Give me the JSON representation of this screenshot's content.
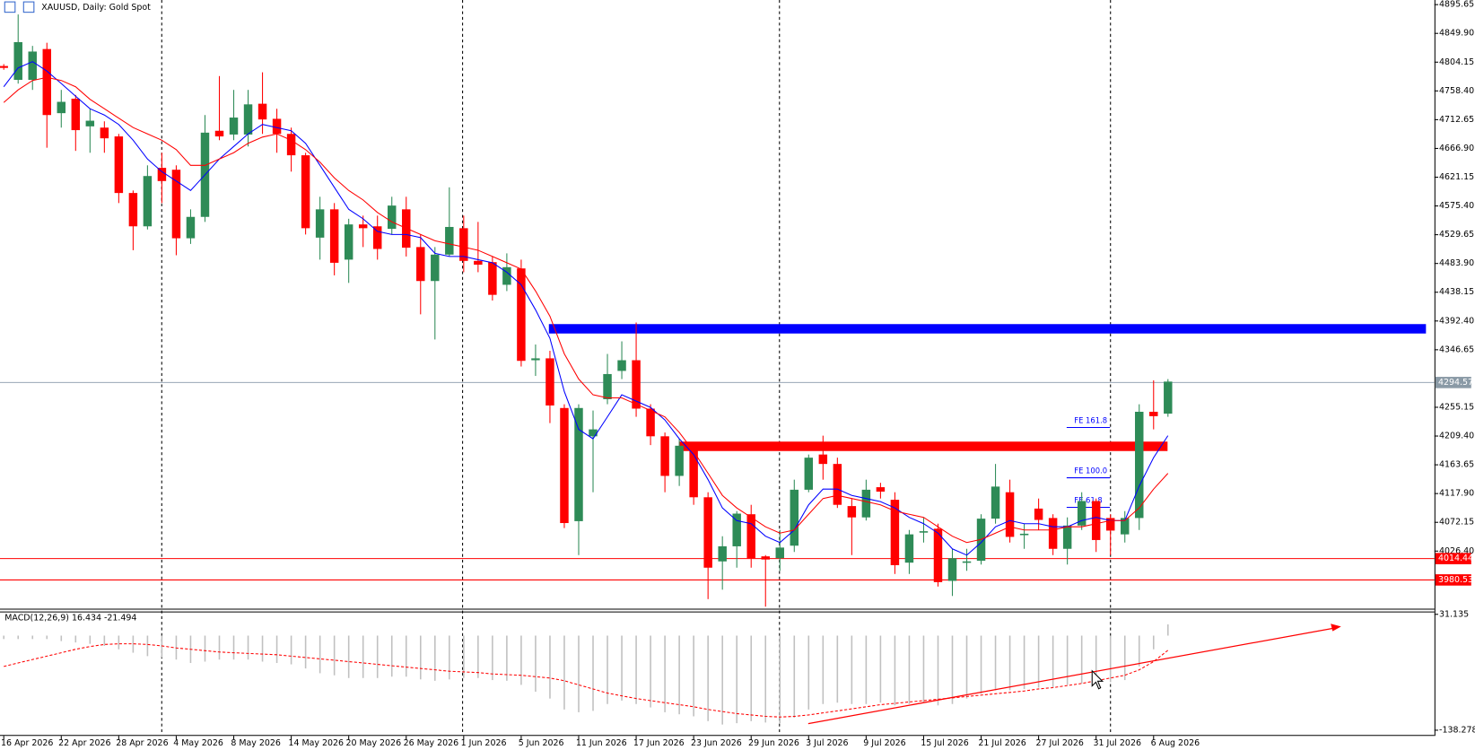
{
  "chart_data": [
    {
      "type": "candlestick",
      "title": "XAUUSD, Daily:  Gold Spot",
      "categories": [
        "16 Apr 2026",
        null,
        null,
        null,
        "22 Apr 2026",
        null,
        null,
        null,
        "28 Apr 2026",
        null,
        null,
        null,
        "4 May 2026",
        null,
        null,
        null,
        "8 May 2026",
        null,
        null,
        null,
        "14 May 2026",
        null,
        null,
        null,
        "20 May 2026",
        null,
        null,
        null,
        "26 May 2026",
        null,
        null,
        null,
        "1 Jun 2026",
        null,
        null,
        null,
        "5 Jun 2026",
        null,
        null,
        null,
        "11 Jun 2026",
        null,
        null,
        null,
        "17 Jun 2026",
        null,
        null,
        null,
        "23 Jun 2026",
        null,
        null,
        null,
        "29 Jun 2026",
        null,
        null,
        null,
        "3 Jul 2026",
        null,
        null,
        null,
        "9 Jul 2026",
        null,
        null,
        null,
        "15 Jul 2026",
        null,
        null,
        null,
        "21 Jul 2026",
        null,
        null,
        null,
        "27 Jul 2026",
        null,
        null,
        null,
        "31 Jul 2026",
        null,
        null,
        null,
        "6 Aug 2026",
        null
      ],
      "open": [
        4798,
        4776,
        4776,
        4825,
        4723,
        4746,
        4702,
        4700,
        4686,
        4596,
        4543,
        4636,
        4633,
        4524,
        4558,
        4695,
        4689,
        4689,
        4738,
        4714,
        4690,
        4656,
        4525,
        4570,
        4490,
        4546,
        4543,
        4539,
        4570,
        4510,
        4456,
        4498,
        4540,
        4488,
        4486,
        4450,
        4476,
        4330,
        4333,
        4254,
        4074,
        4209,
        4268,
        4313,
        4330,
        4253,
        4209,
        4146,
        4192,
        4112,
        4010,
        4034,
        4085,
        4018,
        4015,
        4035,
        4124,
        4180,
        4165,
        4098,
        4080,
        4128,
        4108,
        4008,
        4056,
        4062,
        3979,
        4008,
        4011,
        4078,
        4120,
        4052,
        4094,
        4079,
        4030,
        4067,
        4106,
        4079,
        4053,
        4079,
        4248,
        4245
      ],
      "high": [
        4801,
        4880,
        4830,
        4835,
        4760,
        4752,
        4730,
        4710,
        4690,
        4600,
        4640,
        4660,
        4640,
        4570,
        4720,
        4782,
        4760,
        4760,
        4788,
        4730,
        4700,
        4660,
        4590,
        4580,
        4555,
        4560,
        4560,
        4590,
        4590,
        4530,
        4510,
        4605,
        4560,
        4550,
        4495,
        4500,
        4490,
        4355,
        4345,
        4260,
        4260,
        4250,
        4340,
        4360,
        4390,
        4260,
        4215,
        4205,
        4198,
        4120,
        4050,
        4090,
        4100,
        4020,
        4060,
        4140,
        4180,
        4210,
        4175,
        4110,
        4140,
        4135,
        4120,
        4060,
        4080,
        4070,
        4030,
        4030,
        4085,
        4165,
        4140,
        4070,
        4110,
        4085,
        4080,
        4120,
        4110,
        4085,
        4090,
        4260,
        4298,
        4300
      ],
      "low": [
        4792,
        4770,
        4760,
        4668,
        4700,
        4663,
        4660,
        4660,
        4580,
        4505,
        4538,
        4580,
        4497,
        4515,
        4550,
        4680,
        4680,
        4670,
        4690,
        4660,
        4630,
        4530,
        4490,
        4465,
        4453,
        4510,
        4490,
        4530,
        4495,
        4403,
        4363,
        4495,
        4470,
        4470,
        4425,
        4440,
        4320,
        4305,
        4230,
        4063,
        4020,
        4120,
        4260,
        4300,
        4240,
        4195,
        4120,
        4130,
        4100,
        3950,
        3965,
        4000,
        4000,
        3938,
        3995,
        4025,
        4120,
        4140,
        4095,
        4020,
        4075,
        4110,
        3990,
        3990,
        4040,
        3970,
        3955,
        3995,
        4005,
        4070,
        4040,
        4030,
        4060,
        4020,
        4005,
        4060,
        4025,
        4020,
        4040,
        4060,
        4220,
        4240
      ],
      "close": [
        4795,
        4836,
        4821,
        4720,
        4741,
        4696,
        4711,
        4683,
        4596,
        4543,
        4623,
        4615,
        4524,
        4558,
        4692,
        4686,
        4716,
        4737,
        4713,
        4690,
        4656,
        4540,
        4570,
        4485,
        4546,
        4540,
        4507,
        4576,
        4509,
        4456,
        4498,
        4542,
        4488,
        4482,
        4434,
        4478,
        4329,
        4333,
        4258,
        4071,
        4254,
        4220,
        4308,
        4330,
        4253,
        4209,
        4146,
        4194,
        4112,
        4000,
        4034,
        4086,
        4015,
        4013,
        4032,
        4124,
        4175,
        4165,
        4100,
        4080,
        4124,
        4121,
        4004,
        4053,
        4058,
        3977,
        4015,
        4010,
        4078,
        4129,
        4049,
        4054,
        4076,
        4030,
        4067,
        4106,
        4044,
        4059,
        4079,
        4248,
        4241,
        4296
      ],
      "up_color": "#2e8b57",
      "down_color": "#ff0000",
      "series": [
        {
          "color": "#0000ff",
          "values": [
            4765,
            4795,
            4805,
            4790,
            4770,
            4750,
            4730,
            4720,
            4705,
            4680,
            4650,
            4630,
            4615,
            4600,
            4625,
            4650,
            4670,
            4690,
            4705,
            4700,
            4695,
            4675,
            4640,
            4605,
            4570,
            4555,
            4535,
            4530,
            4530,
            4525,
            4500,
            4495,
            4495,
            4490,
            4485,
            4470,
            4450,
            4410,
            4365,
            4280,
            4220,
            4205,
            4240,
            4275,
            4265,
            4255,
            4235,
            4205,
            4180,
            4140,
            4095,
            4075,
            4070,
            4050,
            4040,
            4060,
            4100,
            4125,
            4125,
            4115,
            4110,
            4105,
            4095,
            4080,
            4070,
            4055,
            4030,
            4020,
            4040,
            4065,
            4075,
            4070,
            4070,
            4065,
            4065,
            4075,
            4080,
            4075,
            4075,
            4130,
            4175,
            4210
          ]
        },
        {
          "color": "#ff0000",
          "values": [
            4740,
            4760,
            4775,
            4780,
            4775,
            4765,
            4745,
            4730,
            4715,
            4700,
            4690,
            4680,
            4665,
            4640,
            4640,
            4650,
            4660,
            4675,
            4685,
            4690,
            4680,
            4665,
            4645,
            4620,
            4600,
            4585,
            4565,
            4550,
            4540,
            4530,
            4520,
            4515,
            4510,
            4505,
            4495,
            4485,
            4475,
            4440,
            4400,
            4340,
            4300,
            4275,
            4270,
            4270,
            4260,
            4250,
            4240,
            4215,
            4185,
            4150,
            4115,
            4095,
            4080,
            4065,
            4055,
            4060,
            4085,
            4110,
            4115,
            4110,
            4105,
            4100,
            4090,
            4085,
            4080,
            4065,
            4050,
            4040,
            4045,
            4055,
            4065,
            4060,
            4060,
            4060,
            4065,
            4065,
            4070,
            4075,
            4075,
            4095,
            4125,
            4150
          ]
        }
      ],
      "ylim": [
        3936.3,
        4903
      ],
      "yticks": [
        4895.65,
        {
          "value": 4849.9,
          "label": "4849.90"
        },
        4804.15,
        {
          "value": 4758.4,
          "label": "4758.40"
        },
        4712.65,
        {
          "value": 4666.9,
          "label": "4666.90"
        },
        4621.15,
        {
          "value": 4575.4,
          "label": "4575.40"
        },
        4529.65,
        {
          "value": 4483.9,
          "label": "4483.90"
        },
        4438.15,
        {
          "value": 4392.4,
          "label": "4392.40"
        },
        4346.65,
        4255.15,
        {
          "value": 4209.4,
          "label": "4209.40"
        },
        4163.65,
        {
          "value": 4117.9,
          "label": "4117.90"
        },
        4072.15,
        {
          "value": 4026.4,
          "label": "4026.40"
        }
      ],
      "current_price": 4294.57,
      "price_lines": [
        4014.44,
        3980.53
      ],
      "levels": [
        {
          "value": 4380,
          "color": "#0000ff"
        },
        {
          "value": 4193,
          "color": "#ff0000"
        }
      ],
      "fe_levels": [
        {
          "text": "FE 161.8",
          "value": 4223
        },
        {
          "text": "FE 100.0",
          "value": 4143
        },
        {
          "text": "FE 61.8",
          "value": 4096
        }
      ]
    },
    {
      "type": "macd",
      "title": "MACD(12,26,9) 16.434 -21.494",
      "histogram": [
        -5,
        -5,
        -5,
        -5,
        -8,
        -10,
        -12,
        -15,
        -20,
        -25,
        -30,
        -32,
        -35,
        -40,
        -38,
        -35,
        -35,
        -35,
        -38,
        -40,
        -42,
        -48,
        -55,
        -58,
        -62,
        -62,
        -62,
        -60,
        -60,
        -64,
        -66,
        -64,
        -62,
        -62,
        -65,
        -66,
        -72,
        -82,
        -92,
        -108,
        -112,
        -110,
        -100,
        -95,
        -100,
        -105,
        -112,
        -115,
        -118,
        -125,
        -130,
        -128,
        -125,
        -127,
        -128,
        -120,
        -108,
        -100,
        -98,
        -100,
        -100,
        -98,
        -102,
        -100,
        -98,
        -102,
        -100,
        -92,
        -85,
        -80,
        -80,
        -78,
        -76,
        -76,
        -72,
        -70,
        -68,
        -68,
        -65,
        -45,
        -20,
        16.434
      ],
      "signal": [
        -45,
        -40,
        -35,
        -30,
        -25,
        -20,
        -16,
        -13,
        -12,
        -12,
        -13,
        -15,
        -18,
        -20,
        -22,
        -24,
        -25,
        -26,
        -27,
        -28,
        -30,
        -32,
        -34,
        -36,
        -38,
        -40,
        -42,
        -44,
        -46,
        -48,
        -50,
        -52,
        -53,
        -54,
        -56,
        -57,
        -58,
        -60,
        -62,
        -66,
        -72,
        -78,
        -84,
        -88,
        -92,
        -95,
        -98,
        -101,
        -104,
        -108,
        -111,
        -114,
        -116,
        -118,
        -119,
        -118,
        -116,
        -113,
        -110,
        -107,
        -104,
        -101,
        -99,
        -97,
        -95,
        -93,
        -91,
        -89,
        -87,
        -85,
        -83,
        -81,
        -78,
        -76,
        -73,
        -70,
        -66,
        -62,
        -58,
        -50,
        -38,
        -21.494
      ],
      "hist_color": "#c0c0c0",
      "signal_color": "#ff0000",
      "ylim": [
        -138.278,
        31.135
      ],
      "yticks": [
        31.135,
        -138.278
      ]
    }
  ]
}
